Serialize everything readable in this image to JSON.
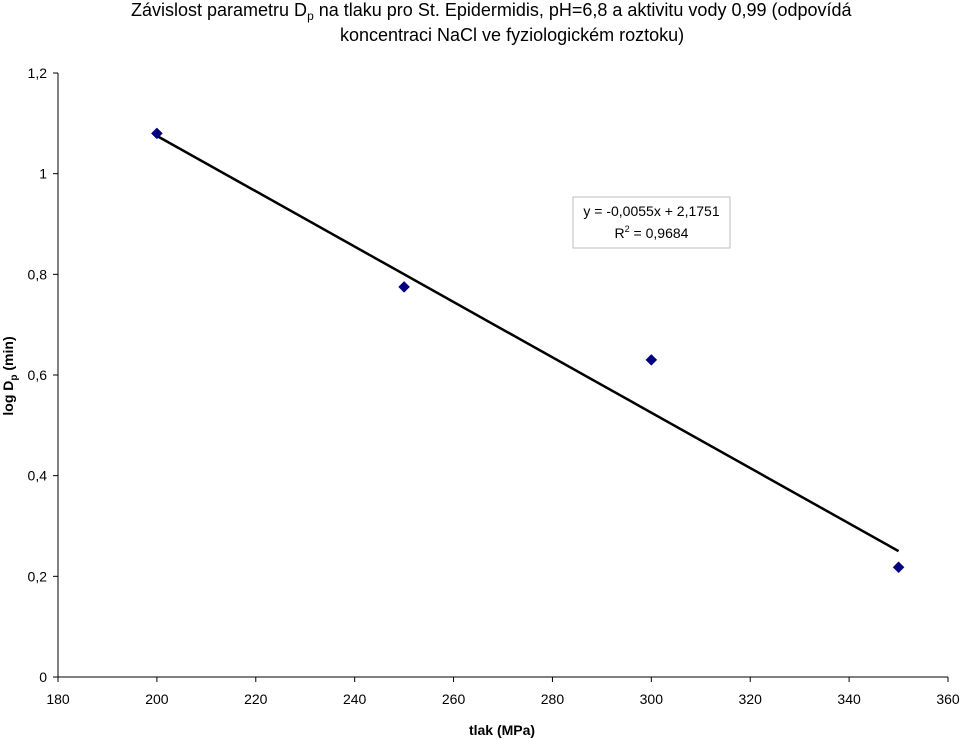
{
  "title": {
    "line1_prefix": "Závislost parametru D",
    "line1_sub": "p",
    "line1_suffix": " na tlaku pro St. Epidermidis, pH=6,8 a aktivitu vody 0,99 (odpovídá",
    "line2": "koncentraci NaCl ve fyziologickém roztoku)"
  },
  "chart_data": {
    "type": "scatter",
    "x": [
      200,
      250,
      300,
      350
    ],
    "y": [
      1.08,
      0.775,
      0.63,
      0.218
    ],
    "marker_color": "#000080",
    "marker": "diamond",
    "xlabel": "tlak (MPa)",
    "ylabel_prefix": "log D",
    "ylabel_sub": "p",
    "ylabel_suffix": " (min)",
    "xlim": [
      180,
      360
    ],
    "ylim": [
      0,
      1.2
    ],
    "x_ticks": [
      180,
      200,
      220,
      240,
      260,
      280,
      300,
      320,
      340,
      360
    ],
    "y_ticks": [
      0,
      0.2,
      0.4,
      0.6,
      0.8,
      1,
      1.2
    ],
    "x_tick_labels": [
      "180",
      "200",
      "220",
      "240",
      "260",
      "280",
      "300",
      "320",
      "340",
      "360"
    ],
    "y_tick_labels": [
      "0",
      "0,2",
      "0,4",
      "0,6",
      "0,8",
      "1",
      "1,2"
    ],
    "trendline": {
      "type": "linear",
      "slope": -0.0055,
      "intercept": 2.1751,
      "x_range": [
        200,
        350
      ],
      "equation_label": "y = -0,0055x + 2,1751",
      "r2_prefix": "R",
      "r2_sup": "2",
      "r2_suffix": " = 0,9684"
    },
    "grid": false,
    "legend": "none"
  }
}
